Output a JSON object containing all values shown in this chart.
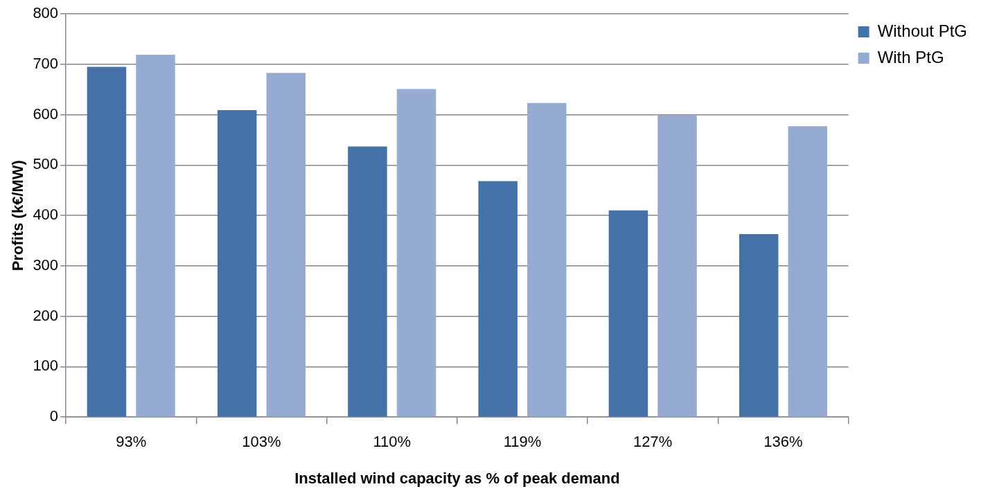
{
  "chart_data": {
    "type": "bar",
    "xlabel": "Installed wind capacity as % of peak demand",
    "ylabel": "Profits (k€/MW)",
    "categories": [
      "93%",
      "103%",
      "110%",
      "119%",
      "127%",
      "136%"
    ],
    "series": [
      {
        "name": "Without PtG",
        "color": "#4472a8",
        "values": [
          695,
          609,
          537,
          468,
          410,
          363
        ]
      },
      {
        "name": "With PtG",
        "color": "#95abd2",
        "values": [
          719,
          683,
          651,
          623,
          599,
          577
        ]
      }
    ],
    "ylim": [
      0,
      800
    ],
    "yticks": [
      0,
      100,
      200,
      300,
      400,
      500,
      600,
      700,
      800
    ],
    "grid": "y",
    "legend": "top right"
  }
}
